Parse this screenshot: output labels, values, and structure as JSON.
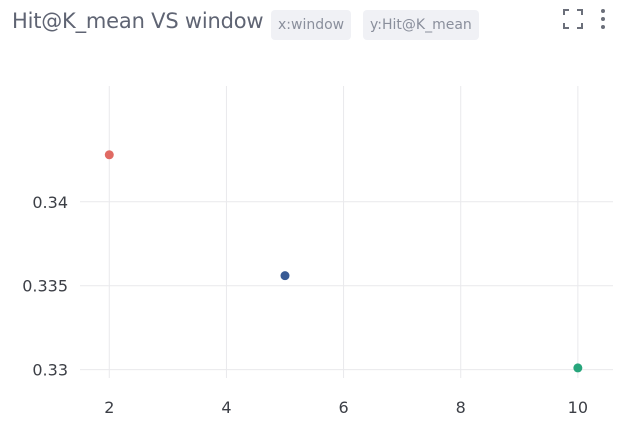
{
  "header": {
    "title": "Hit@K_mean VS window",
    "x_chip": "x:window",
    "y_chip": "y:Hit@K_mean",
    "icons": [
      "expand-icon",
      "more-vertical-icon"
    ]
  },
  "chart_data": {
    "type": "scatter",
    "title": "Hit@K_mean VS window",
    "xlabel": "window",
    "ylabel": "Hit@K_mean",
    "xlim": [
      1.5,
      10.6
    ],
    "ylim": [
      0.3295,
      0.3469
    ],
    "x_ticks": [
      2,
      4,
      6,
      8,
      10
    ],
    "y_ticks": [
      0.33,
      0.335,
      0.34
    ],
    "x_tick_labels": [
      "2",
      "4",
      "6",
      "8",
      "10"
    ],
    "y_tick_labels": [
      "0.33",
      "0.335",
      "0.34"
    ],
    "grid": true,
    "points": [
      {
        "x": 2,
        "y": 0.3428,
        "color": "#e06a63"
      },
      {
        "x": 5,
        "y": 0.3356,
        "color": "#385a94"
      },
      {
        "x": 10,
        "y": 0.3301,
        "color": "#27a57b"
      }
    ]
  }
}
